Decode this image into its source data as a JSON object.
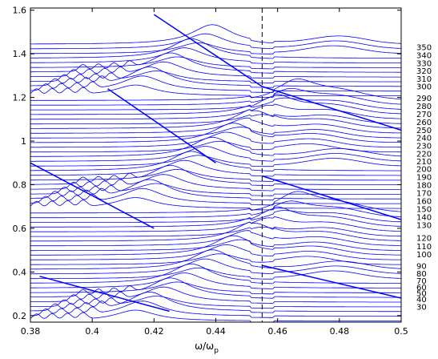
{
  "chart_data": {
    "type": "line",
    "xlabel_main": "ω/ω",
    "xlabel_sub": "p",
    "xlim": [
      0.38,
      0.5
    ],
    "ylim": [
      0.17,
      1.61
    ],
    "x_ticks": [
      0.38,
      0.4,
      0.42,
      0.44,
      0.46,
      0.48,
      0.5
    ],
    "x_tick_labels": [
      "0.38",
      "0.4",
      "0.42",
      "0.44",
      "0.46",
      "0.48",
      "0.5"
    ],
    "y_ticks": [
      0.2,
      0.4,
      0.6,
      0.8,
      1.0,
      1.2,
      1.4,
      1.6
    ],
    "y_tick_labels": [
      "0.2",
      "0.4",
      "0.6",
      "0.8",
      "1",
      "1.2",
      "1.4",
      "1.6"
    ],
    "series_labels": [
      "30",
      "40",
      "50",
      "60",
      "70",
      "80",
      "90",
      "100",
      "110",
      "120",
      "130",
      "140",
      "150",
      "160",
      "170",
      "180",
      "190",
      "200",
      "210",
      "220",
      "230",
      "240",
      "250",
      "260",
      "270",
      "280",
      "290",
      "300",
      "310",
      "320",
      "330",
      "340",
      "350"
    ],
    "series_label_values": [
      0.24,
      0.274,
      0.302,
      0.33,
      0.36,
      0.393,
      0.428,
      0.48,
      0.518,
      0.556,
      0.614,
      0.652,
      0.688,
      0.724,
      0.762,
      0.798,
      0.835,
      0.871,
      0.906,
      0.942,
      0.978,
      1.014,
      1.05,
      1.086,
      1.123,
      1.16,
      1.197,
      1.25,
      1.285,
      1.321,
      1.357,
      1.393,
      1.43
    ],
    "dashed_vline_x": 0.455,
    "trace_count": 60,
    "trace_y_start": 0.175,
    "trace_y_step": 0.0215,
    "color": "#0000ff",
    "grid": false
  }
}
